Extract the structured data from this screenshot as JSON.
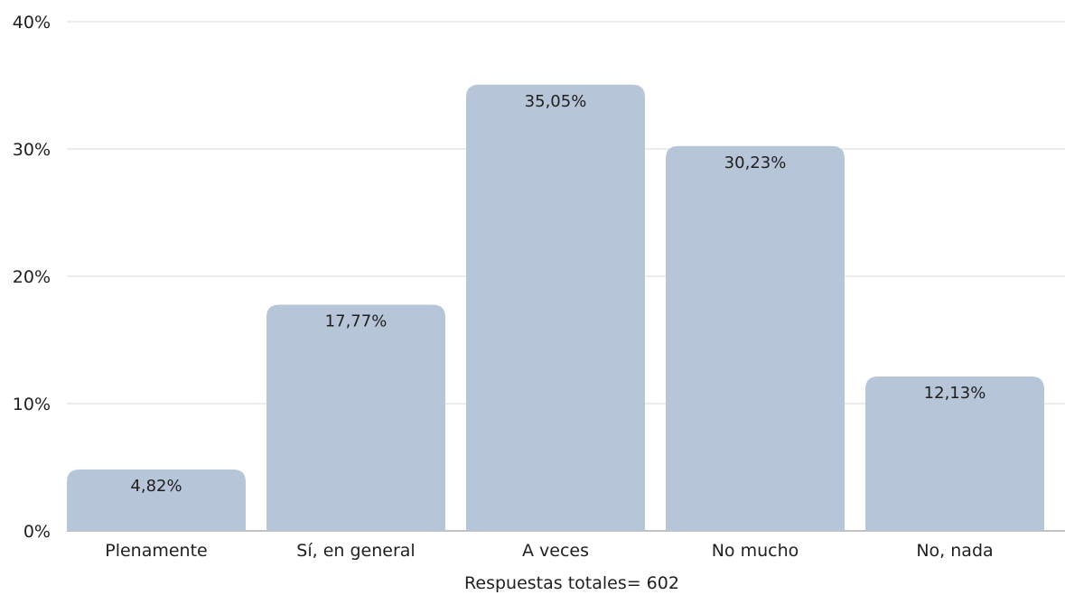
{
  "chart_data": {
    "type": "bar",
    "title": "",
    "xlabel": "Respuestas totales= 602",
    "ylabel": "",
    "categories": [
      "Plenamente",
      "Sí, en general",
      "A veces",
      "No mucho",
      "No, nada"
    ],
    "values": [
      4.82,
      17.77,
      35.05,
      30.23,
      12.13
    ],
    "data_labels": [
      "4,82%",
      "17,77%",
      "35,05%",
      "30,23%",
      "12,13%"
    ],
    "ylim": [
      0,
      40
    ],
    "yticks": [
      0,
      10,
      20,
      30,
      40
    ],
    "ytick_labels": [
      "0%",
      "10%",
      "20%",
      "30%",
      "40%"
    ],
    "grid": true,
    "legend": "none",
    "bar_color": "#b6c5d7"
  }
}
